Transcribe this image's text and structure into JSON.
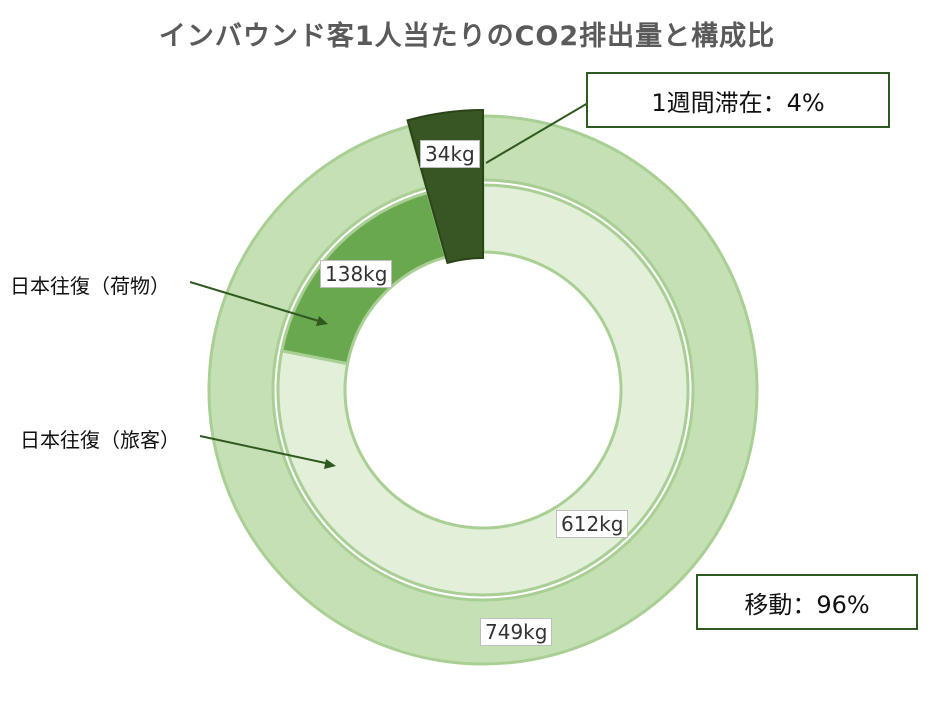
{
  "chart_data": {
    "type": "pie",
    "variant": "nested-donut",
    "title": "インバウンド客1人当たりのCO2排出量と構成比",
    "unit": "kg",
    "rings": [
      {
        "name": "inner",
        "slices": [
          {
            "label": "日本往復（旅客）",
            "value": 612,
            "value_label": "612kg",
            "color": "#e2efd9"
          },
          {
            "label": "日本往復（荷物）",
            "value": 138,
            "value_label": "138kg",
            "color": "#6aa84f"
          },
          {
            "label": "1週間滞在",
            "value": 34,
            "value_label": "",
            "color": "#375623"
          }
        ]
      },
      {
        "name": "outer",
        "slices": [
          {
            "label": "移動",
            "value": 749,
            "value_label": "749kg",
            "color": "#c5e0b4"
          },
          {
            "label": "1週間滞在",
            "value": 34,
            "value_label": "34kg",
            "color": "#375623"
          }
        ]
      }
    ],
    "callouts": [
      {
        "text": "1週間滞在：4%"
      },
      {
        "text": "移動：96%"
      }
    ],
    "side_labels": [
      {
        "text": "日本往復（荷物）"
      },
      {
        "text": "日本往復（旅客）"
      }
    ],
    "colors": {
      "outer_ring": "#c5e0b4",
      "inner_passenger": "#e2efd9",
      "inner_cargo": "#6aa84f",
      "stay": "#375623",
      "callout_border": "#2f5a1f",
      "leader_line": "#2f5a1f"
    }
  }
}
